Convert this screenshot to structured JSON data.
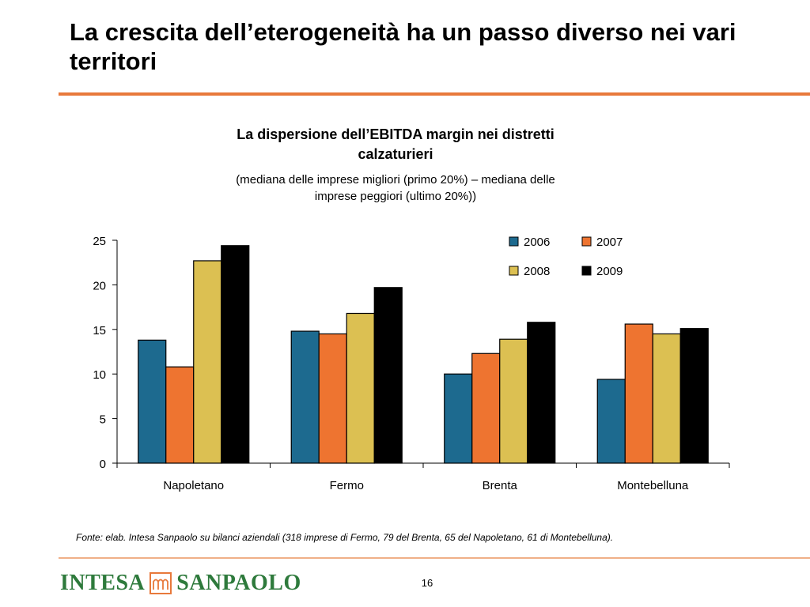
{
  "slide": {
    "title": "La crescita dell’eterogeneità ha un passo diverso nei vari territori",
    "source": "Fonte: elab. Intesa Sanpaolo su bilanci aziendali (318 imprese di Fermo, 79 del Brenta, 65  del Napoletano, 61 di Montebelluna).",
    "page_number": "16",
    "logo_left": "INTESA",
    "logo_right": "SANPAOLO"
  },
  "colors": {
    "accent_rule": "#e8793b",
    "footer_rule": "#f0b088",
    "logo_green": "#2e7a3c",
    "logo_orange": "#e8793b"
  },
  "chart_data": {
    "type": "bar",
    "title": "La dispersione dell’EBITDA margin nei distretti calzaturieri",
    "subtitle": "(mediana delle imprese migliori (primo 20%) – mediana delle imprese peggiori (ultimo 20%))",
    "categories": [
      "Napoletano",
      "Fermo",
      "Brenta",
      "Montebelluna"
    ],
    "series": [
      {
        "name": "2006",
        "color": "#1d6a8f",
        "values": [
          13.8,
          14.8,
          10.0,
          9.4
        ]
      },
      {
        "name": "2007",
        "color": "#ee7430",
        "values": [
          10.8,
          14.5,
          12.3,
          15.6
        ]
      },
      {
        "name": "2008",
        "color": "#dcc052",
        "values": [
          22.7,
          16.8,
          13.9,
          14.5
        ]
      },
      {
        "name": "2009",
        "color": "#000000",
        "values": [
          24.4,
          19.7,
          15.8,
          15.1
        ]
      }
    ],
    "ylim": [
      0,
      25
    ],
    "yticks": [
      0,
      5,
      10,
      15,
      20,
      25
    ],
    "xlabel": "",
    "ylabel": "",
    "grid": false,
    "legend": "top-right"
  }
}
